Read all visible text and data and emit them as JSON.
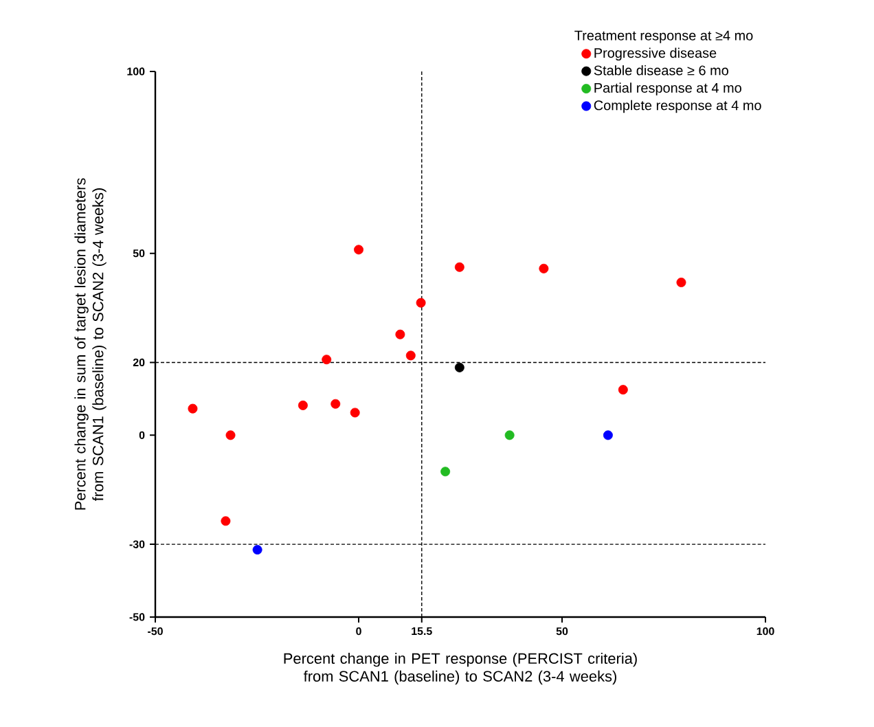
{
  "chart_data": {
    "type": "scatter",
    "xlabel": "Percent change in PET response (PERCIST criteria) from SCAN1 (baseline) to SCAN2 (3-4 weeks)",
    "ylabel": "Percent change in sum of target lesion diameters from SCAN1 (baseline) to SCAN2 (3-4 weeks)",
    "legend_title": "Treatment response at ≥4 mo",
    "legend": "top right",
    "marker": "circle",
    "grid": false,
    "xlim": [
      -50,
      100
    ],
    "xticks": [
      -50,
      0,
      15.5,
      50,
      100
    ],
    "ylim": [
      -50,
      100
    ],
    "yticks": [
      -50,
      -30,
      0,
      20,
      50,
      100
    ],
    "series": [
      {
        "name": "Progressive disease",
        "color": "#ff0000",
        "x": [
          -40.8,
          -31.5,
          -32.7,
          -13.7,
          -7.9,
          -5.7,
          -0.9,
          0,
          10.2,
          12.8,
          15.3,
          24.8,
          45.5,
          65,
          79.3
        ],
        "values": [
          7.3,
          0,
          -23.6,
          8.2,
          20.8,
          8.6,
          6.2,
          51,
          27.7,
          21.9,
          36.4,
          46.2,
          45.8,
          12.5,
          42
        ]
      },
      {
        "name": "Stable disease ≥ 6 mo",
        "color": "#000000",
        "x": [
          24.8
        ],
        "values": [
          18.6
        ]
      },
      {
        "name": "Partial response at 4 mo",
        "color": "#22bb22",
        "x": [
          21.3,
          37.1
        ],
        "values": [
          -10,
          0
        ]
      },
      {
        "name": "Complete response at 4 mo",
        "color": "#0000ff",
        "x": [
          -24.9,
          61.3
        ],
        "values": [
          -31.5,
          0
        ]
      }
    ],
    "ref_lines": [
      {
        "axis": "x",
        "value": 15.5,
        "line_style": "dashed"
      },
      {
        "axis": "y",
        "value": 20,
        "line_style": "dashed"
      },
      {
        "axis": "y",
        "value": -30,
        "line_style": "dashed"
      }
    ]
  }
}
